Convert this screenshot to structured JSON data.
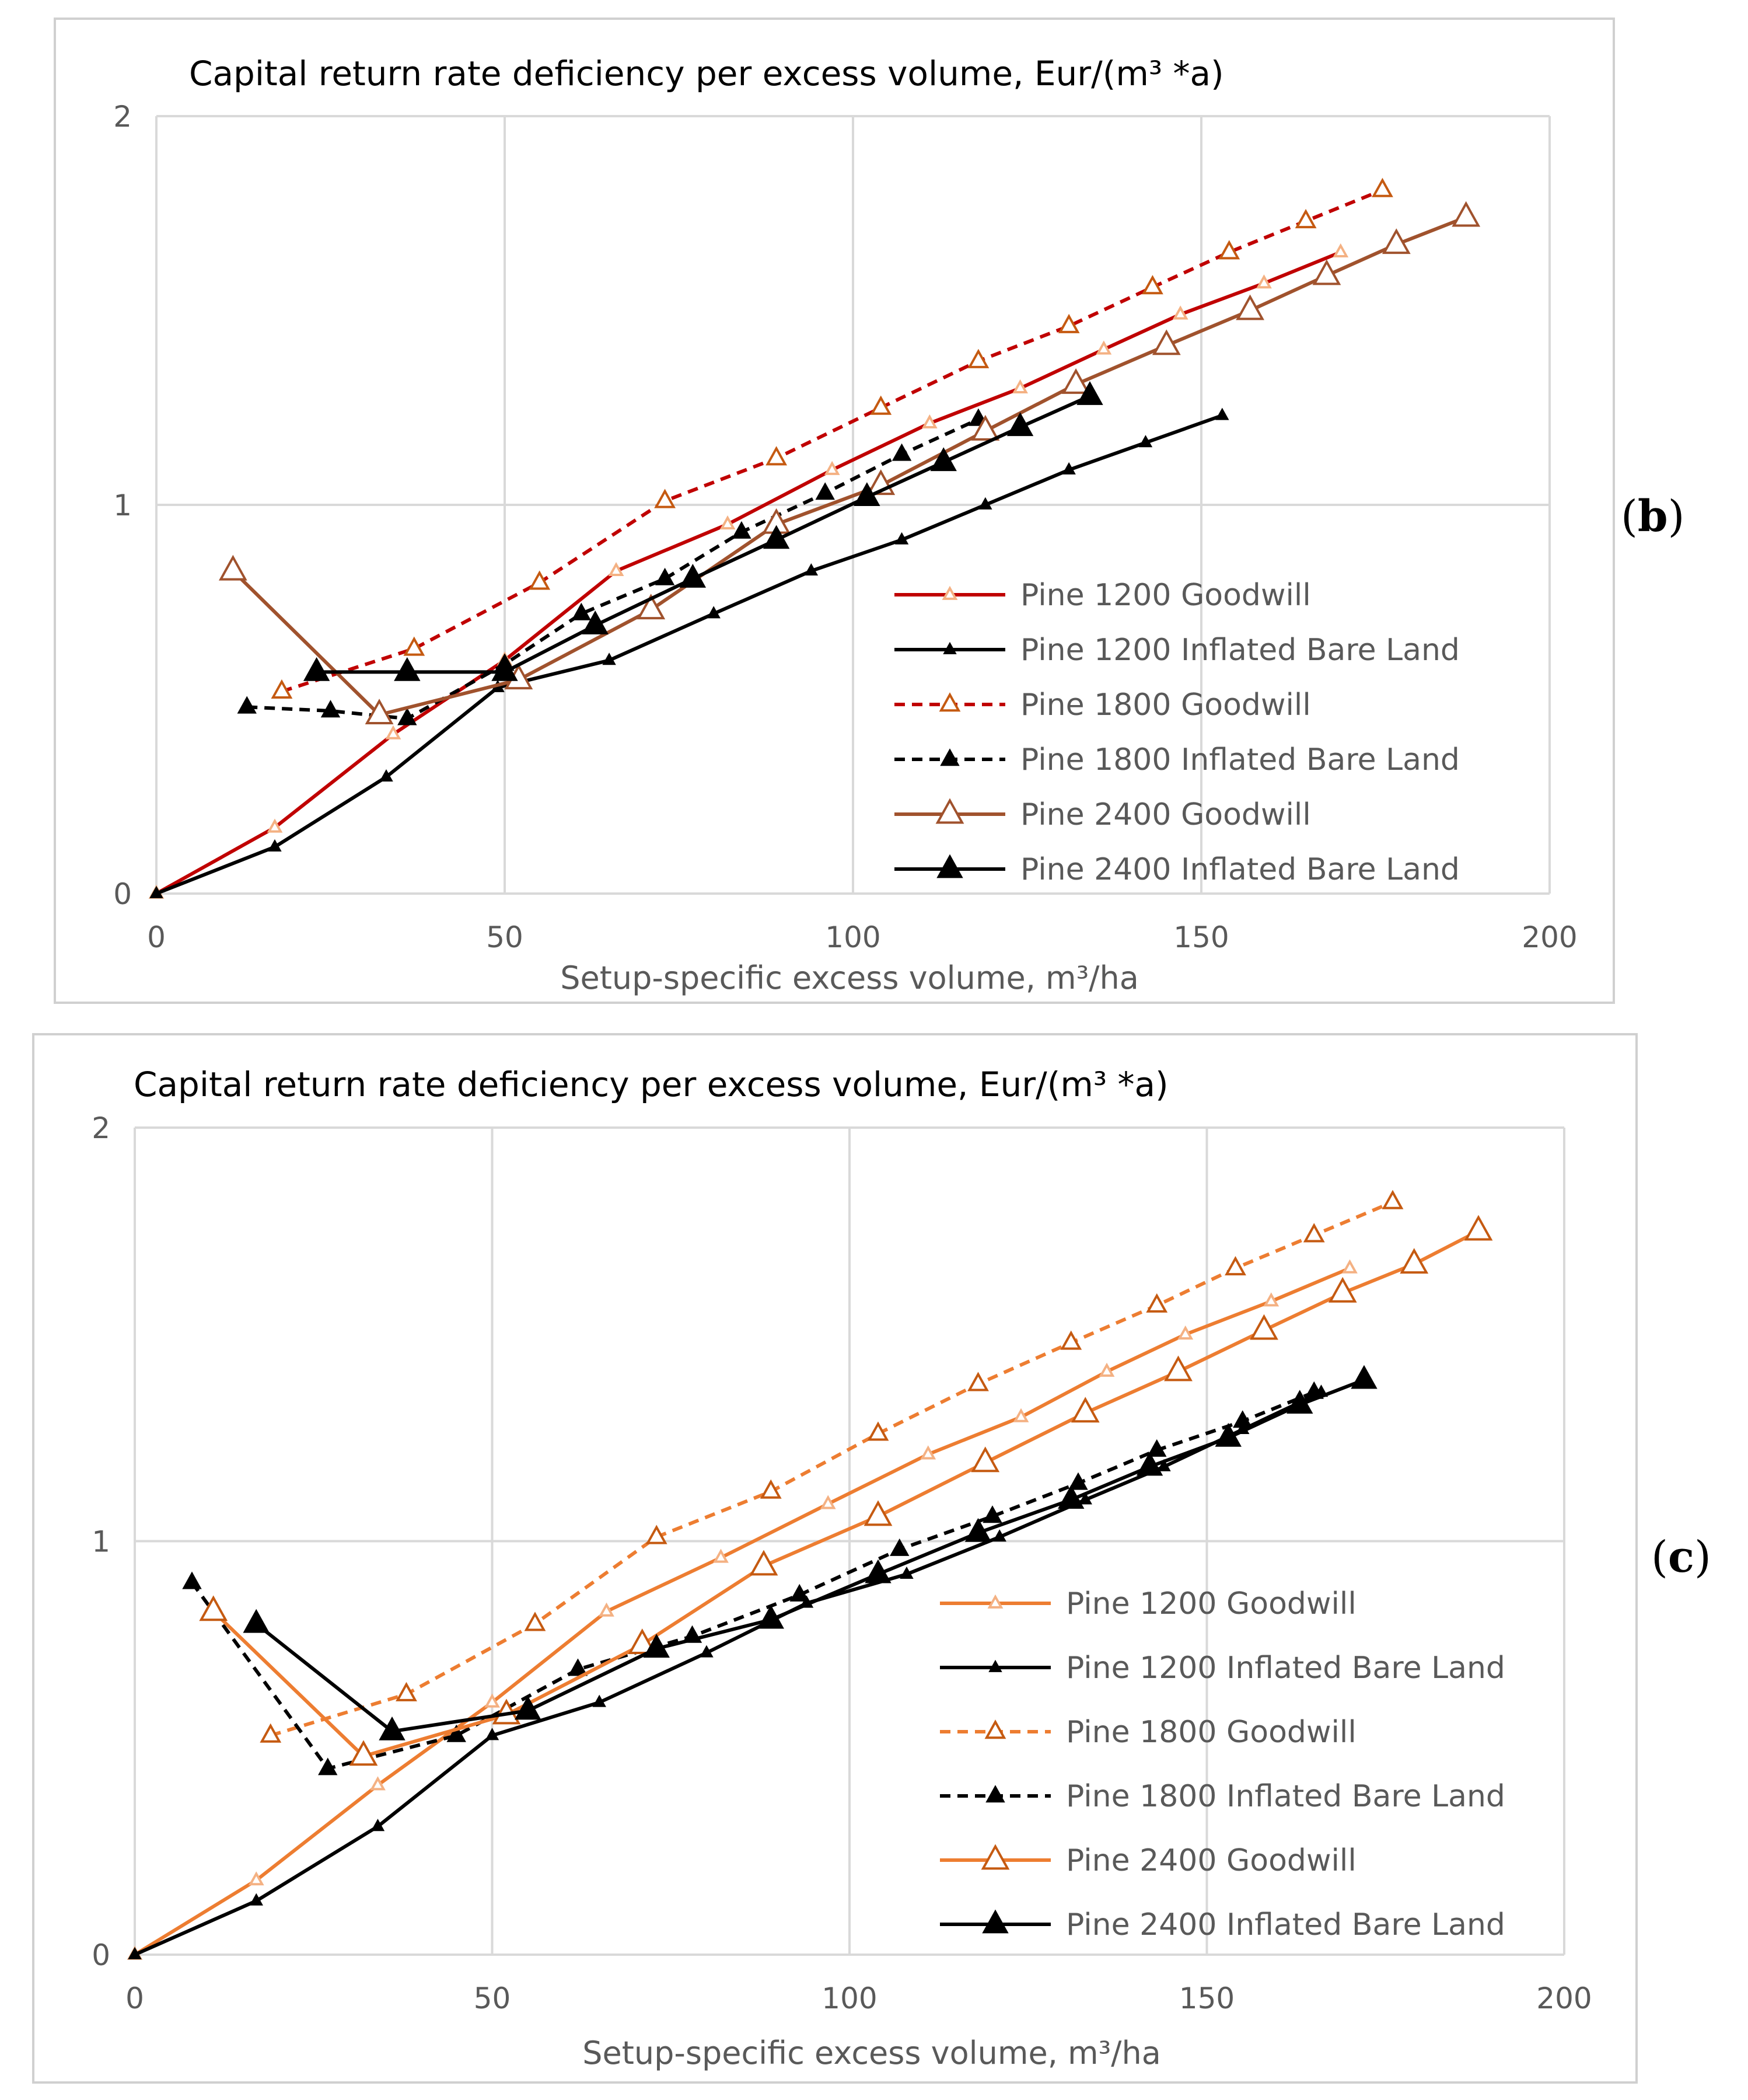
{
  "panel_labels": {
    "b": {
      "open": "(",
      "letter": "b",
      "close": ")"
    },
    "c": {
      "open": "(",
      "letter": "c",
      "close": ")"
    }
  },
  "chart_data": [
    {
      "id": "b",
      "type": "line",
      "title": "Capital return rate deficiency per excess volume,  Eur/(m³ *a)",
      "xlabel": "Setup-specific excess volume, m³/ha",
      "ylabel": "",
      "xlim": [
        0,
        200
      ],
      "ylim": [
        0,
        2
      ],
      "xticks": [
        "0",
        "50",
        "100",
        "150",
        "200"
      ],
      "yticks": [
        "0",
        "1",
        "2"
      ],
      "grid": true,
      "legend_position": "right-bottom",
      "series": [
        {
          "name": "Pine 1200 Goodwill",
          "color": "#c00000",
          "dash": false,
          "marker": "triangle-open",
          "marker_color": "#f4b183",
          "marker_size": "small",
          "x": [
            0,
            17,
            34,
            50,
            66,
            82,
            97,
            111,
            124,
            136,
            147,
            159,
            170
          ],
          "y": [
            0,
            0.17,
            0.41,
            0.6,
            0.83,
            0.95,
            1.09,
            1.21,
            1.3,
            1.4,
            1.49,
            1.57,
            1.65
          ]
        },
        {
          "name": "Pine 1200 Inflated Bare Land",
          "color": "#000000",
          "dash": false,
          "marker": "triangle-filled",
          "marker_color": "#000000",
          "marker_size": "small",
          "x": [
            0,
            17,
            33,
            49,
            65,
            80,
            94,
            107,
            119,
            131,
            142,
            153
          ],
          "y": [
            0,
            0.12,
            0.3,
            0.53,
            0.6,
            0.72,
            0.83,
            0.91,
            1.0,
            1.09,
            1.16,
            1.23
          ]
        },
        {
          "name": "Pine 1800 Goodwill",
          "color": "#c00000",
          "dash": true,
          "marker": "triangle-open",
          "marker_color": "#c55a11",
          "marker_size": "medium",
          "x": [
            18,
            37,
            55,
            73,
            89,
            104,
            118,
            131,
            143,
            154,
            165,
            176
          ],
          "y": [
            0.52,
            0.63,
            0.8,
            1.01,
            1.12,
            1.25,
            1.37,
            1.46,
            1.56,
            1.65,
            1.73,
            1.81
          ]
        },
        {
          "name": "Pine 1800 Inflated Bare Land",
          "color": "#000000",
          "dash": true,
          "marker": "triangle-filled",
          "marker_color": "#000000",
          "marker_size": "medium",
          "x": [
            13,
            25,
            36,
            50,
            61,
            73,
            84,
            96,
            107,
            118
          ],
          "y": [
            0.48,
            0.47,
            0.45,
            0.59,
            0.72,
            0.81,
            0.93,
            1.03,
            1.13,
            1.22
          ]
        },
        {
          "name": "Pine 2400 Goodwill",
          "color": "#a0522d",
          "dash": false,
          "marker": "triangle-open",
          "marker_color": "#a0522d",
          "marker_size": "large",
          "x": [
            11,
            32,
            52,
            71,
            89,
            104,
            119,
            132,
            145,
            157,
            168,
            178,
            188
          ],
          "y": [
            0.83,
            0.46,
            0.55,
            0.73,
            0.95,
            1.05,
            1.19,
            1.31,
            1.41,
            1.5,
            1.59,
            1.67,
            1.74
          ]
        },
        {
          "name": "Pine 2400 Inflated Bare Land",
          "color": "#000000",
          "dash": false,
          "marker": "triangle-filled",
          "marker_color": "#000000",
          "marker_size": "large",
          "x": [
            23,
            36,
            50,
            63,
            77,
            89,
            102,
            113,
            124,
            134
          ],
          "y": [
            0.57,
            0.57,
            0.57,
            0.69,
            0.81,
            0.91,
            1.02,
            1.11,
            1.2,
            1.28
          ]
        }
      ]
    },
    {
      "id": "c",
      "type": "line",
      "title": "Capital return rate deficiency per excess volume,  Eur/(m³ *a)",
      "xlabel": "Setup-specific excess volume, m³/ha",
      "ylabel": "",
      "xlim": [
        0,
        200
      ],
      "ylim": [
        0,
        2
      ],
      "xticks": [
        "0",
        "50",
        "100",
        "150",
        "200"
      ],
      "yticks": [
        "0",
        "1",
        "2"
      ],
      "grid": true,
      "legend_position": "right-bottom",
      "series": [
        {
          "name": "Pine 1200 Goodwill",
          "color": "#ed7d31",
          "dash": false,
          "marker": "triangle-open",
          "marker_color": "#f4b183",
          "marker_size": "small",
          "x": [
            0,
            17,
            34,
            50,
            66,
            82,
            97,
            111,
            124,
            136,
            147,
            159,
            170
          ],
          "y": [
            0,
            0.18,
            0.41,
            0.61,
            0.83,
            0.96,
            1.09,
            1.21,
            1.3,
            1.41,
            1.5,
            1.58,
            1.66
          ]
        },
        {
          "name": "Pine 1200 Inflated Bare Land",
          "color": "#000000",
          "dash": false,
          "marker": "triangle-filled",
          "marker_color": "#000000",
          "marker_size": "small",
          "x": [
            0,
            17,
            34,
            50,
            65,
            80,
            94,
            108,
            121,
            133,
            144,
            155,
            166
          ],
          "y": [
            0,
            0.13,
            0.31,
            0.53,
            0.61,
            0.73,
            0.85,
            0.92,
            1.01,
            1.1,
            1.18,
            1.27,
            1.36
          ]
        },
        {
          "name": "Pine 1800 Goodwill",
          "color": "#ed7d31",
          "dash": true,
          "marker": "triangle-open",
          "marker_color": "#c55a11",
          "marker_size": "medium",
          "x": [
            19,
            38,
            56,
            73,
            89,
            104,
            118,
            131,
            143,
            154,
            165,
            176
          ],
          "y": [
            0.53,
            0.63,
            0.8,
            1.01,
            1.12,
            1.26,
            1.38,
            1.48,
            1.57,
            1.66,
            1.74,
            1.82
          ]
        },
        {
          "name": "Pine 1800 Inflated Bare Land",
          "color": "#000000",
          "dash": true,
          "marker": "triangle-filled",
          "marker_color": "#000000",
          "marker_size": "medium",
          "x": [
            8,
            27,
            45,
            62,
            78,
            93,
            107,
            120,
            132,
            143,
            155,
            165
          ],
          "y": [
            0.9,
            0.45,
            0.53,
            0.69,
            0.77,
            0.87,
            0.98,
            1.06,
            1.14,
            1.22,
            1.29,
            1.36
          ]
        },
        {
          "name": "Pine 2400 Goodwill",
          "color": "#ed7d31",
          "dash": false,
          "marker": "triangle-open",
          "marker_color": "#c55a11",
          "marker_size": "large",
          "x": [
            11,
            32,
            52,
            71,
            88,
            104,
            119,
            133,
            146,
            158,
            169,
            179,
            188
          ],
          "y": [
            0.83,
            0.48,
            0.58,
            0.75,
            0.94,
            1.06,
            1.19,
            1.31,
            1.41,
            1.51,
            1.6,
            1.67,
            1.75
          ]
        },
        {
          "name": "Pine 2400 Inflated Bare Land",
          "color": "#000000",
          "dash": false,
          "marker": "triangle-filled",
          "marker_color": "#000000",
          "marker_size": "large",
          "x": [
            17,
            36,
            55,
            73,
            89,
            104,
            118,
            131,
            142,
            153,
            163,
            172
          ],
          "y": [
            0.8,
            0.54,
            0.59,
            0.74,
            0.81,
            0.92,
            1.02,
            1.1,
            1.18,
            1.25,
            1.33,
            1.39
          ]
        }
      ]
    }
  ]
}
